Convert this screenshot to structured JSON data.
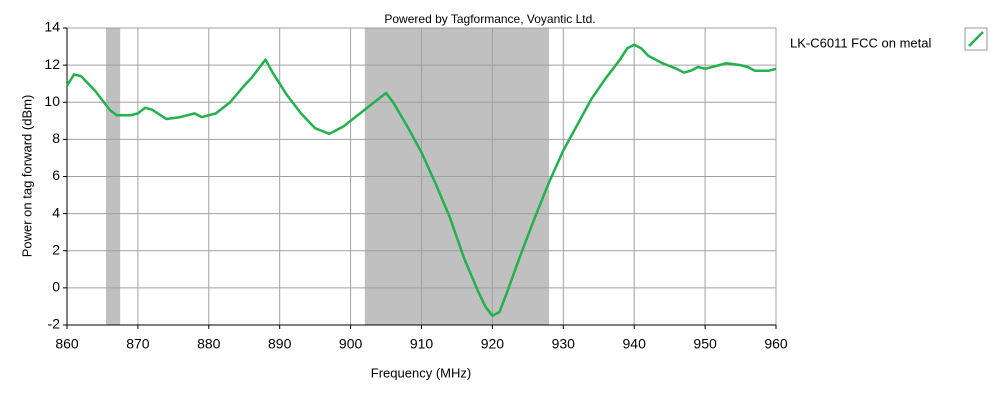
{
  "chart_data": {
    "type": "line",
    "subtitle": "Powered by Tagformance, Voyantic Ltd.",
    "xlabel": "Frequency (MHz)",
    "ylabel": "Power on tag forward (dBm)",
    "x": [
      860,
      861,
      862,
      864,
      866,
      867,
      869,
      870,
      871,
      872,
      874,
      876,
      878,
      879,
      881,
      883,
      885,
      886,
      888,
      889,
      891,
      893,
      895,
      897,
      899,
      901,
      903,
      905,
      906,
      908,
      910,
      912,
      914,
      916,
      918,
      919,
      920,
      921,
      922,
      924,
      926,
      928,
      930,
      932,
      934,
      936,
      938,
      939,
      940,
      941,
      942,
      944,
      946,
      947,
      948,
      949,
      950,
      952,
      953,
      955,
      956,
      957,
      959,
      960
    ],
    "series": [
      {
        "name": "LK-C6011 FCC on metal",
        "color": "#22b14c",
        "values": [
          10.9,
          11.5,
          11.4,
          10.6,
          9.6,
          9.3,
          9.3,
          9.4,
          9.7,
          9.6,
          9.1,
          9.2,
          9.4,
          9.2,
          9.4,
          10.0,
          10.9,
          11.3,
          12.3,
          11.6,
          10.4,
          9.4,
          8.6,
          8.3,
          8.7,
          9.3,
          9.9,
          10.5,
          10.0,
          8.7,
          7.3,
          5.6,
          3.8,
          1.6,
          -0.2,
          -1.0,
          -1.5,
          -1.3,
          -0.3,
          1.8,
          3.8,
          5.7,
          7.4,
          8.8,
          10.2,
          11.3,
          12.3,
          12.9,
          13.1,
          12.9,
          12.5,
          12.1,
          11.8,
          11.6,
          11.7,
          11.9,
          11.8,
          12.0,
          12.1,
          12.0,
          11.9,
          11.7,
          11.7,
          11.8
        ]
      }
    ],
    "bands": [
      [
        865.5,
        867.5
      ],
      [
        902,
        928
      ]
    ],
    "band_color": "#c0c0c0",
    "xlim": [
      860,
      960
    ],
    "xticks": [
      860,
      870,
      880,
      890,
      900,
      910,
      920,
      930,
      940,
      950,
      960
    ],
    "ylim": [
      -2,
      14
    ],
    "yticks": [
      -2,
      0,
      2,
      4,
      6,
      8,
      10,
      12,
      14
    ],
    "grid": true,
    "legend": "right"
  }
}
